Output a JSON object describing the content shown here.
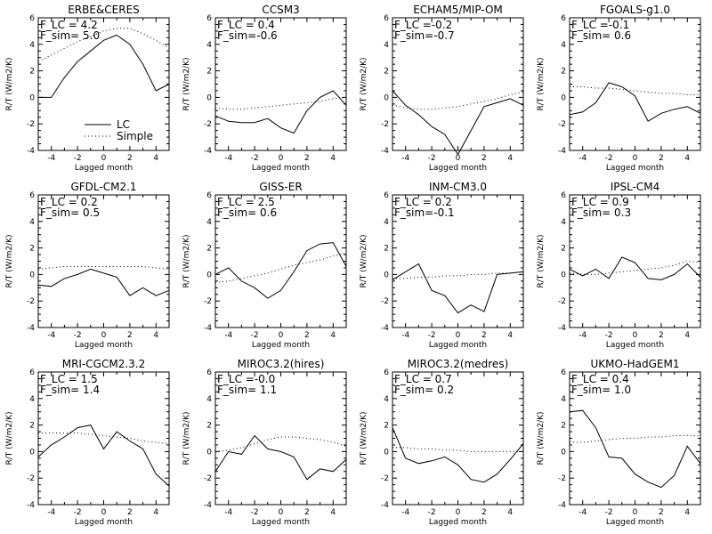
{
  "chart_data": [
    {
      "type": "line",
      "title": "ERBE&CERES",
      "xlabel": "Lagged month",
      "ylabel": "R/T (W/m2/K)",
      "xlim": [
        -5,
        5
      ],
      "ylim": [
        -4,
        6
      ],
      "xticks": [
        -4,
        -2,
        0,
        2,
        4
      ],
      "yticks": [
        -4,
        -2,
        0,
        2,
        4,
        6
      ],
      "x": [
        -5,
        -4,
        -3,
        -2,
        -1,
        0,
        1,
        2,
        3,
        4,
        5
      ],
      "annotations": [
        "F_LC = 4.2",
        "F_sim= 5.0"
      ],
      "legend": {
        "position": "bottom-center",
        "entries": [
          "LC",
          "Simple"
        ]
      },
      "series": [
        {
          "name": "LC",
          "style": "solid",
          "values": [
            0.0,
            0.0,
            1.5,
            2.7,
            3.5,
            4.3,
            4.7,
            4.0,
            2.5,
            0.5,
            1.0
          ]
        },
        {
          "name": "Simple",
          "style": "dotted",
          "values": [
            2.7,
            3.2,
            3.7,
            4.2,
            4.6,
            5.0,
            5.2,
            5.2,
            4.8,
            4.3,
            3.7
          ]
        }
      ]
    },
    {
      "type": "line",
      "title": "CCSM3",
      "xlabel": "Lagged month",
      "ylabel": "R/T (W/m2/K)",
      "xlim": [
        -5,
        5
      ],
      "ylim": [
        -4,
        6
      ],
      "xticks": [
        -4,
        -2,
        0,
        2,
        4
      ],
      "yticks": [
        -4,
        -2,
        0,
        2,
        4,
        6
      ],
      "x": [
        -5,
        -4,
        -3,
        -2,
        -1,
        0,
        1,
        2,
        3,
        4,
        5
      ],
      "annotations": [
        "F_LC = 0.4",
        "F_sim=-0.6"
      ],
      "series": [
        {
          "name": "LC",
          "style": "solid",
          "values": [
            -1.4,
            -1.8,
            -1.9,
            -1.9,
            -1.6,
            -2.3,
            -2.7,
            -1.0,
            0.0,
            0.5,
            -0.6
          ]
        },
        {
          "name": "Simple",
          "style": "dotted",
          "values": [
            -0.8,
            -0.9,
            -0.9,
            -0.8,
            -0.7,
            -0.6,
            -0.5,
            -0.4,
            -0.3,
            -0.1,
            0.0
          ]
        }
      ]
    },
    {
      "type": "line",
      "title": "ECHAM5/MIP-OM",
      "xlabel": "Lagged month",
      "ylabel": "R/T (W/m2/K)",
      "xlim": [
        -5,
        5
      ],
      "ylim": [
        -4,
        6
      ],
      "xticks": [
        -4,
        -2,
        0,
        2,
        4
      ],
      "yticks": [
        -4,
        -2,
        0,
        2,
        4,
        6
      ],
      "x": [
        -5,
        -4,
        -3,
        -2,
        -1,
        0,
        1,
        2,
        3,
        4,
        5
      ],
      "annotations": [
        "F_LC =-0.2",
        "F_sim=-0.7"
      ],
      "series": [
        {
          "name": "LC",
          "style": "solid",
          "values": [
            0.5,
            -0.6,
            -1.3,
            -2.2,
            -2.8,
            -4.3,
            -2.5,
            -0.7,
            -0.4,
            -0.1,
            -0.6
          ]
        },
        {
          "name": "Simple",
          "style": "dotted",
          "values": [
            -0.6,
            -0.8,
            -0.9,
            -0.9,
            -0.8,
            -0.7,
            -0.5,
            -0.3,
            -0.1,
            0.2,
            0.4
          ]
        }
      ]
    },
    {
      "type": "line",
      "title": "FGOALS-g1.0",
      "xlabel": "Lagged month",
      "ylabel": "R/T (W/m2/K)",
      "xlim": [
        -5,
        5
      ],
      "ylim": [
        -4,
        6
      ],
      "xticks": [
        -4,
        -2,
        0,
        2,
        4
      ],
      "yticks": [
        -4,
        -2,
        0,
        2,
        4,
        6
      ],
      "x": [
        -5,
        -4,
        -3,
        -2,
        -1,
        0,
        1,
        2,
        3,
        4,
        5
      ],
      "annotations": [
        "F_LC =-0.1",
        "F_sim= 0.6"
      ],
      "series": [
        {
          "name": "LC",
          "style": "solid",
          "values": [
            -1.3,
            -1.1,
            -0.4,
            1.1,
            0.8,
            0.1,
            -1.8,
            -1.2,
            -0.9,
            -0.7,
            -1.2
          ]
        },
        {
          "name": "Simple",
          "style": "dotted",
          "values": [
            0.8,
            0.8,
            0.7,
            0.7,
            0.6,
            0.5,
            0.4,
            0.3,
            0.3,
            0.2,
            0.2
          ]
        }
      ]
    },
    {
      "type": "line",
      "title": "GFDL-CM2.1",
      "xlabel": "Lagged month",
      "ylabel": "R/T (W/m2/K)",
      "xlim": [
        -5,
        5
      ],
      "ylim": [
        -4,
        6
      ],
      "xticks": [
        -4,
        -2,
        0,
        2,
        4
      ],
      "yticks": [
        -4,
        -2,
        0,
        2,
        4,
        6
      ],
      "x": [
        -5,
        -4,
        -3,
        -2,
        -1,
        0,
        1,
        2,
        3,
        4,
        5
      ],
      "annotations": [
        "F_LC = 0.2",
        "F_sim= 0.5"
      ],
      "series": [
        {
          "name": "LC",
          "style": "solid",
          "values": [
            -0.8,
            -0.9,
            -0.3,
            0.0,
            0.4,
            0.1,
            -0.2,
            -1.6,
            -1.0,
            -1.6,
            -1.2
          ]
        },
        {
          "name": "Simple",
          "style": "dotted",
          "values": [
            0.4,
            0.5,
            0.6,
            0.6,
            0.6,
            0.6,
            0.6,
            0.6,
            0.6,
            0.5,
            0.4
          ]
        }
      ]
    },
    {
      "type": "line",
      "title": "GISS-ER",
      "xlabel": "Lagged month",
      "ylabel": "R/T (W/m2/K)",
      "xlim": [
        -5,
        5
      ],
      "ylim": [
        -4,
        6
      ],
      "xticks": [
        -4,
        -2,
        0,
        2,
        4
      ],
      "yticks": [
        -4,
        -2,
        0,
        2,
        4,
        6
      ],
      "x": [
        -5,
        -4,
        -3,
        -2,
        -1,
        0,
        1,
        2,
        3,
        4,
        5
      ],
      "annotations": [
        "F_LC = 2.5",
        "F_sim= 0.6"
      ],
      "series": [
        {
          "name": "LC",
          "style": "solid",
          "values": [
            0.0,
            0.5,
            -0.5,
            -1.0,
            -1.8,
            -1.2,
            0.2,
            1.8,
            2.3,
            2.4,
            0.6
          ]
        },
        {
          "name": "Simple",
          "style": "dotted",
          "values": [
            -0.6,
            -0.5,
            -0.3,
            -0.1,
            0.1,
            0.4,
            0.7,
            0.9,
            1.1,
            1.4,
            1.6
          ]
        }
      ]
    },
    {
      "type": "line",
      "title": "INM-CM3.0",
      "xlabel": "Lagged month",
      "ylabel": "R/T (W/m2/K)",
      "xlim": [
        -5,
        5
      ],
      "ylim": [
        -4,
        6
      ],
      "xticks": [
        -4,
        -2,
        0,
        2,
        4
      ],
      "yticks": [
        -4,
        -2,
        0,
        2,
        4,
        6
      ],
      "x": [
        -5,
        -4,
        -3,
        -2,
        -1,
        0,
        1,
        2,
        3,
        4,
        5
      ],
      "annotations": [
        "F_LC = 0.2",
        "F_sim=-0.1"
      ],
      "series": [
        {
          "name": "LC",
          "style": "solid",
          "values": [
            -0.4,
            0.2,
            0.8,
            -1.2,
            -1.6,
            -2.9,
            -2.3,
            -2.8,
            0.0,
            0.1,
            0.2
          ]
        },
        {
          "name": "Simple",
          "style": "dotted",
          "values": [
            -0.3,
            -0.3,
            -0.2,
            -0.2,
            -0.1,
            -0.1,
            0.0,
            0.0,
            0.1,
            0.1,
            0.2
          ]
        }
      ]
    },
    {
      "type": "line",
      "title": "IPSL-CM4",
      "xlabel": "Lagged month",
      "ylabel": "R/T (W/m2/K)",
      "xlim": [
        -5,
        5
      ],
      "ylim": [
        -4,
        6
      ],
      "xticks": [
        -4,
        -2,
        0,
        2,
        4
      ],
      "yticks": [
        -4,
        -2,
        0,
        2,
        4,
        6
      ],
      "x": [
        -5,
        -4,
        -3,
        -2,
        -1,
        0,
        1,
        2,
        3,
        4,
        5
      ],
      "annotations": [
        "F_LC = 0.9",
        "F_sim= 0.3"
      ],
      "series": [
        {
          "name": "LC",
          "style": "solid",
          "values": [
            0.4,
            -0.1,
            0.4,
            -0.3,
            1.3,
            0.9,
            -0.3,
            -0.4,
            0.0,
            0.8,
            -0.2
          ]
        },
        {
          "name": "Simple",
          "style": "dotted",
          "values": [
            0.1,
            0.0,
            0.0,
            0.1,
            0.2,
            0.3,
            0.4,
            0.5,
            0.7,
            1.0,
            0.9
          ]
        }
      ]
    },
    {
      "type": "line",
      "title": "MRI-CGCM2.3.2",
      "xlabel": "Lagged month",
      "ylabel": "R/T (W/m2/K)",
      "xlim": [
        -5,
        5
      ],
      "ylim": [
        -4,
        6
      ],
      "xticks": [
        -4,
        -2,
        0,
        2,
        4
      ],
      "yticks": [
        -4,
        -2,
        0,
        2,
        4,
        6
      ],
      "x": [
        -5,
        -4,
        -3,
        -2,
        -1,
        0,
        1,
        2,
        3,
        4,
        5
      ],
      "annotations": [
        "F_LC = 1.5",
        "F_sim= 1.4"
      ],
      "series": [
        {
          "name": "LC",
          "style": "solid",
          "values": [
            -0.4,
            0.5,
            1.1,
            1.8,
            2.0,
            0.2,
            1.5,
            0.8,
            0.2,
            -1.7,
            -2.6
          ]
        },
        {
          "name": "Simple",
          "style": "dotted",
          "values": [
            1.4,
            1.4,
            1.4,
            1.4,
            1.3,
            1.2,
            1.1,
            1.0,
            0.8,
            0.7,
            0.6
          ]
        }
      ]
    },
    {
      "type": "line",
      "title": "MIROC3.2(hires)",
      "xlabel": "Lagged month",
      "ylabel": "R/T (W/m2/K)",
      "xlim": [
        -5,
        5
      ],
      "ylim": [
        -4,
        6
      ],
      "xticks": [
        -4,
        -2,
        0,
        2,
        4
      ],
      "yticks": [
        -4,
        -2,
        0,
        2,
        4,
        6
      ],
      "x": [
        -5,
        -4,
        -3,
        -2,
        -1,
        0,
        1,
        2,
        3,
        4,
        5
      ],
      "annotations": [
        "F_LC =-0.0",
        "F_sim= 1.1"
      ],
      "series": [
        {
          "name": "LC",
          "style": "solid",
          "values": [
            -1.5,
            0.0,
            -0.2,
            1.2,
            0.2,
            0.0,
            -0.4,
            -2.1,
            -1.3,
            -1.5,
            -0.6
          ]
        },
        {
          "name": "Simple",
          "style": "dotted",
          "values": [
            0.0,
            0.1,
            0.3,
            0.6,
            0.9,
            1.1,
            1.1,
            1.0,
            0.9,
            0.7,
            0.4
          ]
        }
      ]
    },
    {
      "type": "line",
      "title": "MIROC3.2(medres)",
      "xlabel": "Lagged month",
      "ylabel": "R/T (W/m2/K)",
      "xlim": [
        -5,
        5
      ],
      "ylim": [
        -4,
        6
      ],
      "xticks": [
        -4,
        -2,
        0,
        2,
        4
      ],
      "yticks": [
        -4,
        -2,
        0,
        2,
        4,
        6
      ],
      "x": [
        -5,
        -4,
        -3,
        -2,
        -1,
        0,
        1,
        2,
        3,
        4,
        5
      ],
      "annotations": [
        "F_LC = 0.7",
        "F_sim= 0.2"
      ],
      "series": [
        {
          "name": "LC",
          "style": "solid",
          "values": [
            1.8,
            -0.5,
            -0.9,
            -0.7,
            -0.4,
            -1.0,
            -2.1,
            -2.3,
            -1.7,
            -0.6,
            0.6
          ]
        },
        {
          "name": "Simple",
          "style": "dotted",
          "values": [
            0.3,
            0.3,
            0.2,
            0.2,
            0.1,
            0.1,
            0.0,
            0.0,
            0.0,
            0.0,
            0.0
          ]
        }
      ]
    },
    {
      "type": "line",
      "title": "UKMO-HadGEM1",
      "xlabel": "Lagged month",
      "ylabel": "R/T (W/m2/K)",
      "xlim": [
        -5,
        5
      ],
      "ylim": [
        -4,
        6
      ],
      "xticks": [
        -4,
        -2,
        0,
        2,
        4
      ],
      "yticks": [
        -4,
        -2,
        0,
        2,
        4,
        6
      ],
      "x": [
        -5,
        -4,
        -3,
        -2,
        -1,
        0,
        1,
        2,
        3,
        4,
        5
      ],
      "annotations": [
        "F_LC = 0.4",
        "F_sim= 1.0"
      ],
      "series": [
        {
          "name": "LC",
          "style": "solid",
          "values": [
            3.0,
            3.1,
            1.8,
            -0.4,
            -0.5,
            -1.7,
            -2.3,
            -2.7,
            -1.8,
            0.4,
            -0.9
          ]
        },
        {
          "name": "Simple",
          "style": "dotted",
          "values": [
            0.7,
            0.7,
            0.8,
            0.9,
            1.0,
            1.0,
            1.1,
            1.1,
            1.2,
            1.2,
            1.2
          ]
        }
      ]
    }
  ]
}
